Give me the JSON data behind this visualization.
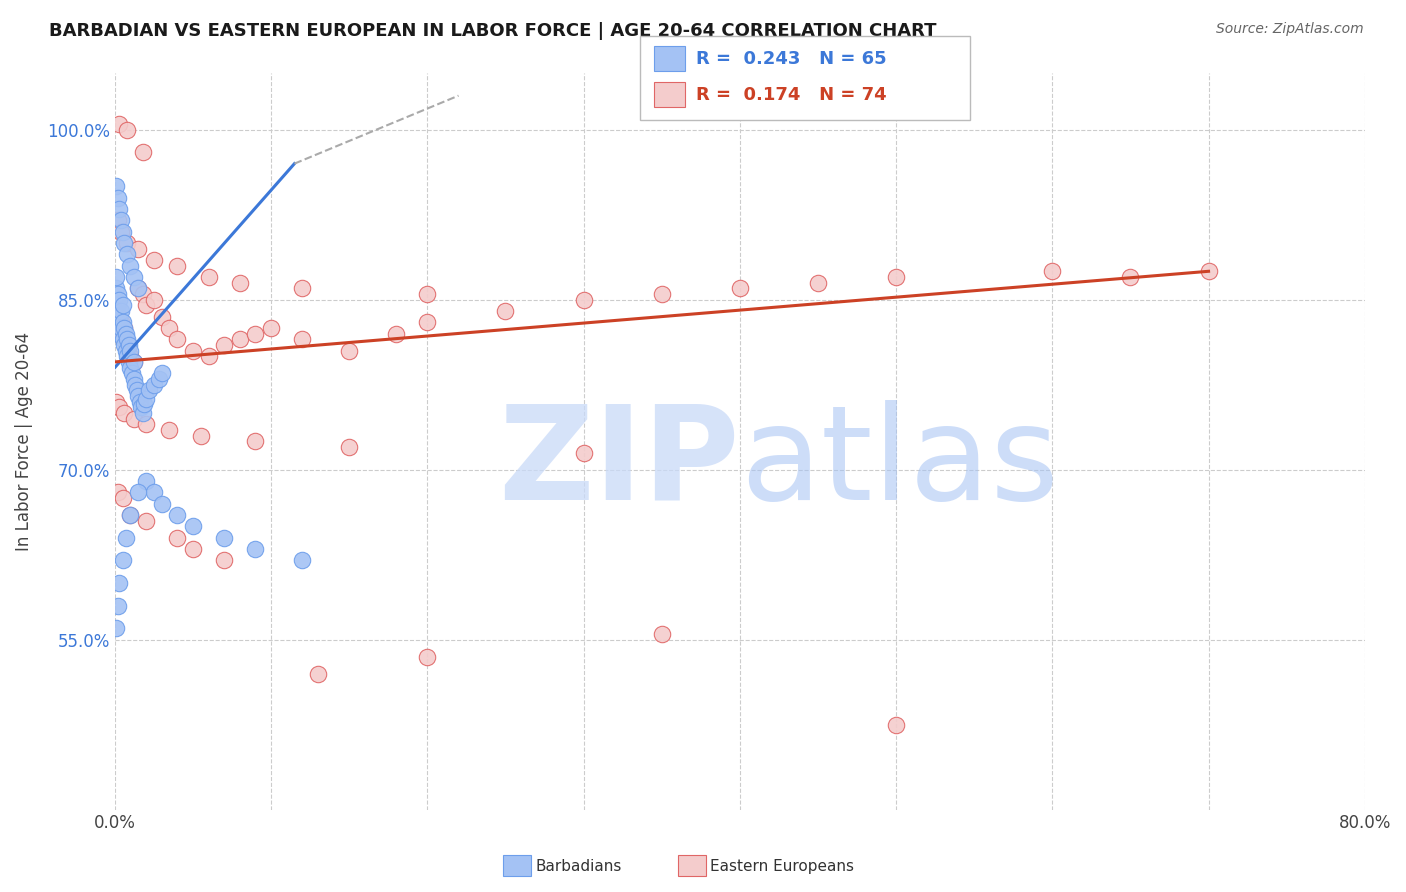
{
  "title": "BARBADIAN VS EASTERN EUROPEAN IN LABOR FORCE | AGE 20-64 CORRELATION CHART",
  "source": "Source: ZipAtlas.com",
  "ylabel": "In Labor Force | Age 20-64",
  "xlim": [
    0.0,
    0.8
  ],
  "ylim": [
    0.4,
    1.05
  ],
  "xticks": [
    0.0,
    0.1,
    0.2,
    0.3,
    0.4,
    0.5,
    0.6,
    0.7,
    0.8
  ],
  "xticklabels": [
    "0.0%",
    "",
    "",
    "",
    "",
    "",
    "",
    "",
    "80.0%"
  ],
  "ytick_vals": [
    0.55,
    0.7,
    0.85,
    1.0
  ],
  "yticklabels": [
    "55.0%",
    "70.0%",
    "85.0%",
    "100.0%"
  ],
  "blue_R": "0.243",
  "blue_N": "65",
  "pink_R": "0.174",
  "pink_N": "74",
  "blue_face": "#a4c2f4",
  "blue_edge": "#6d9eeb",
  "pink_face": "#f4cccc",
  "pink_edge": "#e06666",
  "blue_line_color": "#3c78d8",
  "pink_line_color": "#cc4125",
  "grid_color": "#cccccc",
  "blue_scatter_x": [
    0.001,
    0.001,
    0.001,
    0.001,
    0.002,
    0.002,
    0.002,
    0.003,
    0.003,
    0.003,
    0.004,
    0.004,
    0.005,
    0.005,
    0.005,
    0.006,
    0.006,
    0.007,
    0.007,
    0.008,
    0.008,
    0.009,
    0.009,
    0.01,
    0.01,
    0.011,
    0.012,
    0.012,
    0.013,
    0.014,
    0.015,
    0.016,
    0.017,
    0.018,
    0.019,
    0.02,
    0.022,
    0.025,
    0.028,
    0.03,
    0.001,
    0.002,
    0.003,
    0.004,
    0.005,
    0.006,
    0.008,
    0.01,
    0.012,
    0.015,
    0.02,
    0.025,
    0.03,
    0.04,
    0.05,
    0.07,
    0.09,
    0.12,
    0.001,
    0.002,
    0.003,
    0.005,
    0.007,
    0.01,
    0.015
  ],
  "blue_scatter_y": [
    0.84,
    0.85,
    0.86,
    0.87,
    0.83,
    0.845,
    0.855,
    0.82,
    0.835,
    0.85,
    0.825,
    0.84,
    0.815,
    0.83,
    0.845,
    0.81,
    0.825,
    0.805,
    0.82,
    0.8,
    0.815,
    0.795,
    0.81,
    0.79,
    0.805,
    0.785,
    0.78,
    0.795,
    0.775,
    0.77,
    0.765,
    0.76,
    0.755,
    0.75,
    0.758,
    0.762,
    0.77,
    0.775,
    0.78,
    0.785,
    0.95,
    0.94,
    0.93,
    0.92,
    0.91,
    0.9,
    0.89,
    0.88,
    0.87,
    0.86,
    0.69,
    0.68,
    0.67,
    0.66,
    0.65,
    0.64,
    0.63,
    0.62,
    0.56,
    0.58,
    0.6,
    0.62,
    0.64,
    0.66,
    0.68
  ],
  "pink_scatter_x": [
    0.001,
    0.002,
    0.003,
    0.004,
    0.005,
    0.006,
    0.007,
    0.008,
    0.01,
    0.012,
    0.015,
    0.018,
    0.02,
    0.025,
    0.03,
    0.035,
    0.04,
    0.05,
    0.06,
    0.07,
    0.08,
    0.09,
    0.1,
    0.12,
    0.15,
    0.18,
    0.2,
    0.25,
    0.3,
    0.35,
    0.4,
    0.45,
    0.5,
    0.6,
    0.65,
    0.7,
    0.002,
    0.004,
    0.008,
    0.015,
    0.025,
    0.04,
    0.06,
    0.08,
    0.12,
    0.2,
    0.001,
    0.003,
    0.006,
    0.012,
    0.02,
    0.035,
    0.055,
    0.09,
    0.15,
    0.3,
    0.002,
    0.005,
    0.01,
    0.02,
    0.04,
    0.07,
    0.13,
    0.2,
    0.35,
    0.5,
    0.003,
    0.008,
    0.018,
    0.05
  ],
  "pink_scatter_y": [
    0.84,
    0.83,
    0.82,
    0.83,
    0.82,
    0.825,
    0.815,
    0.81,
    0.8,
    0.795,
    0.86,
    0.855,
    0.845,
    0.85,
    0.835,
    0.825,
    0.815,
    0.805,
    0.8,
    0.81,
    0.815,
    0.82,
    0.825,
    0.815,
    0.805,
    0.82,
    0.83,
    0.84,
    0.85,
    0.855,
    0.86,
    0.865,
    0.87,
    0.875,
    0.87,
    0.875,
    0.92,
    0.91,
    0.9,
    0.895,
    0.885,
    0.88,
    0.87,
    0.865,
    0.86,
    0.855,
    0.76,
    0.755,
    0.75,
    0.745,
    0.74,
    0.735,
    0.73,
    0.725,
    0.72,
    0.715,
    0.68,
    0.675,
    0.66,
    0.655,
    0.64,
    0.62,
    0.52,
    0.535,
    0.555,
    0.475,
    1.005,
    1.0,
    0.98,
    0.63
  ]
}
